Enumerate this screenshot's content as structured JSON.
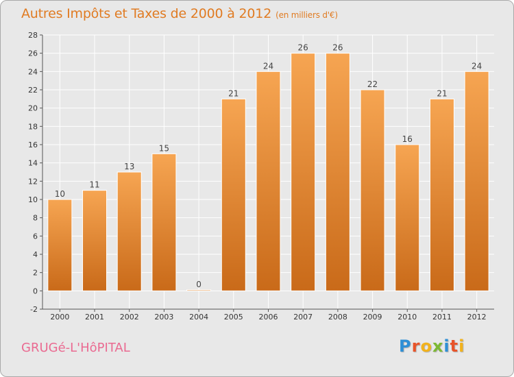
{
  "header": {
    "title": "Autres Impôts et Taxes de 2000 à 2012",
    "unit": "(en milliers d'€)"
  },
  "footer": {
    "commune": "GRUGé-L'HôPITAL",
    "logo_letters": [
      "P",
      "r",
      "o",
      "x",
      "i",
      "t",
      "i"
    ],
    "logo_colors": [
      "#2e8fd6",
      "#e8542a",
      "#f2b21c",
      "#7cb933",
      "#2e8fd6",
      "#e8542a",
      "#f2b21c"
    ]
  },
  "colors": {
    "bar_top": "#f6a552",
    "bar_bottom": "#c96a19",
    "title": "#e07b22",
    "grid": "#ffffff"
  },
  "chart_data": {
    "type": "bar",
    "title": "Autres Impôts et Taxes de 2000 à 2012",
    "subtitle": "(en milliers d'€)",
    "categories": [
      "2000",
      "2001",
      "2002",
      "2003",
      "2004",
      "2005",
      "2006",
      "2007",
      "2008",
      "2009",
      "2010",
      "2011",
      "2012"
    ],
    "values": [
      10,
      11,
      13,
      15,
      0,
      21,
      24,
      26,
      26,
      22,
      16,
      21,
      24
    ],
    "ylim": [
      -2,
      28
    ],
    "yticks": [
      -2,
      0,
      2,
      4,
      6,
      8,
      10,
      12,
      14,
      16,
      18,
      20,
      22,
      24,
      26,
      28
    ],
    "grid": true
  }
}
